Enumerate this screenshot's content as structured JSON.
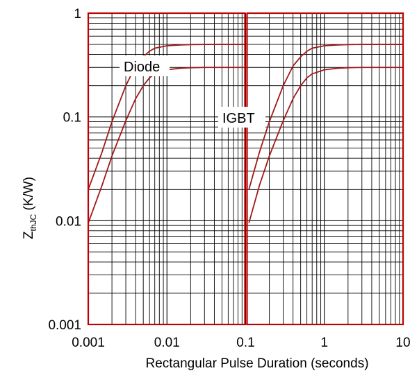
{
  "chart_data": {
    "type": "line",
    "x_scale": "log",
    "y_scale": "log",
    "xlim": [
      0.001,
      10
    ],
    "ylim": [
      0.001,
      1
    ],
    "grid": true,
    "xlabel": "Rectangular Pulse Duration (seconds)",
    "ylabel": {
      "main": "Z",
      "sub": "thJC",
      "unit": " (K/W)"
    },
    "x_ticks": [
      "0.001",
      "0.01",
      "0.1",
      "1",
      "10"
    ],
    "y_ticks": [
      "0.001",
      "0.01",
      "0.1",
      "1"
    ],
    "annotations": [
      "Diode",
      "IGBT"
    ],
    "colors": {
      "curve": "#a01818",
      "frame": "#c00000",
      "grid": "#000000"
    },
    "series": [
      {
        "label": "Diode",
        "x": [
          0.001,
          0.0015,
          0.002,
          0.003,
          0.004,
          0.005,
          0.006,
          0.007,
          0.01,
          0.015,
          0.02,
          0.03,
          0.05,
          0.1
        ],
        "y": [
          0.02,
          0.046,
          0.09,
          0.2,
          0.31,
          0.38,
          0.43,
          0.46,
          0.485,
          0.494,
          0.498,
          0.5,
          0.5,
          0.5
        ]
      },
      {
        "label": "Diode",
        "x": [
          0.001,
          0.0015,
          0.002,
          0.003,
          0.004,
          0.005,
          0.006,
          0.007,
          0.01,
          0.015,
          0.02,
          0.03,
          0.05,
          0.1
        ],
        "y": [
          0.0095,
          0.022,
          0.042,
          0.092,
          0.15,
          0.2,
          0.238,
          0.26,
          0.285,
          0.295,
          0.298,
          0.3,
          0.3,
          0.3
        ]
      },
      {
        "label": "IGBT",
        "x": [
          0.11,
          0.15,
          0.2,
          0.3,
          0.4,
          0.5,
          0.6,
          0.7,
          1,
          1.5,
          2,
          3,
          5,
          10
        ],
        "y": [
          0.02,
          0.046,
          0.09,
          0.2,
          0.31,
          0.38,
          0.43,
          0.46,
          0.485,
          0.494,
          0.498,
          0.5,
          0.5,
          0.5
        ]
      },
      {
        "label": "IGBT",
        "x": [
          0.11,
          0.15,
          0.2,
          0.3,
          0.4,
          0.5,
          0.6,
          0.7,
          1,
          1.5,
          2,
          3,
          5,
          10
        ],
        "y": [
          0.0095,
          0.022,
          0.042,
          0.092,
          0.15,
          0.2,
          0.238,
          0.26,
          0.285,
          0.295,
          0.298,
          0.3,
          0.3,
          0.3
        ]
      }
    ]
  }
}
